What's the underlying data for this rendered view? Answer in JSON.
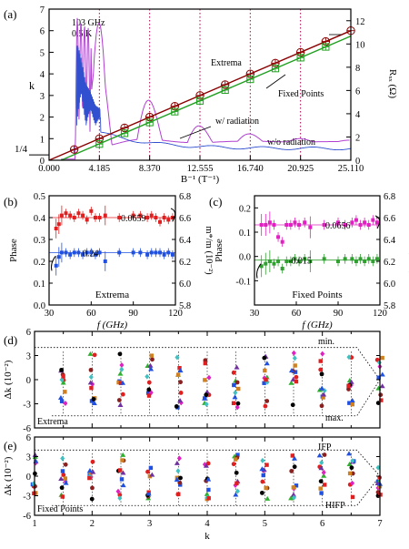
{
  "colors": {
    "axis": "#000000",
    "extrema_line": "#8b0000",
    "fixed_line": "#20a020",
    "rxx_with_radiation": "#b040d0",
    "rxx_without_radiation": "#3050d0",
    "dotted_marker": "#b00050",
    "phase_red": "#e02020",
    "phase_blue": "#2050e0",
    "phase_magenta": "#e020c0",
    "phase_green": "#30a030"
  },
  "chart_data": [
    {
      "id": "a",
      "panel_label": "(a)",
      "type": "line",
      "annotations": [
        "103 GHz",
        "0.5 K"
      ],
      "xlabel": "B⁻¹ (T⁻¹)",
      "ylabel": "k",
      "y2label": "Rₓₓ (Ω)",
      "xlim": [
        0,
        25.11
      ],
      "ylim": [
        0,
        7
      ],
      "y2lim": [
        0,
        13
      ],
      "x_ticks": [
        "0.000",
        "4.185",
        "8.370",
        "12.555",
        "16.740",
        "20.925",
        "25.110"
      ],
      "y_ticks": [
        "0",
        "1",
        "2",
        "3",
        "4",
        "5",
        "6",
        "7"
      ],
      "y2_ticks": [
        "0",
        "2",
        "4",
        "6",
        "8",
        "10",
        "12"
      ],
      "extra_y_label": "1/4",
      "labels": {
        "extrema": "Extrema",
        "fixed_points": "Fixed Points",
        "with_radiation": "w/ radiation",
        "without_radiation": "w/o radiation"
      },
      "extrema_x": [
        2.09,
        4.185,
        6.28,
        8.37,
        10.46,
        12.555,
        14.65,
        16.74,
        18.83,
        20.925,
        23.02,
        25.11
      ],
      "extrema_k": [
        0.5,
        1.0,
        1.5,
        2.0,
        2.5,
        3.0,
        3.5,
        4.0,
        4.5,
        5.0,
        5.5,
        6.0
      ],
      "fixed_x": [
        4.185,
        6.28,
        8.37,
        10.46,
        12.555,
        14.65,
        16.74,
        18.83,
        20.925,
        23.02
      ],
      "fixed_k": [
        0.75,
        1.25,
        1.75,
        2.25,
        2.75,
        3.25,
        3.75,
        4.25,
        4.75,
        5.25
      ],
      "dotted_x": [
        4.185,
        8.37,
        12.555,
        16.74,
        20.925
      ]
    },
    {
      "id": "b",
      "panel_label": "(b)",
      "type": "scatter",
      "title": "Extrema",
      "xlabel": "f (GHz)",
      "ylabel": "Phase",
      "y2label": "m*/m (10⁻²)",
      "xlim": [
        30,
        120
      ],
      "ylim": [
        0.0,
        0.5
      ],
      "y2lim": [
        5.8,
        6.8
      ],
      "x_ticks": [
        "30",
        "60",
        "90",
        "120"
      ],
      "y_ticks": [
        "0.0",
        "0.1",
        "0.2",
        "0.3",
        "0.4",
        "0.5"
      ],
      "y2_ticks": [
        "5.8",
        "6.0",
        "6.2",
        "6.4",
        "6.6",
        "6.8"
      ],
      "fit_labels": [
        "0.0659",
        "0.24"
      ],
      "series": [
        {
          "name": "",
          "color": "red",
          "mean": 0.4,
          "x": [
            35,
            37,
            39,
            42,
            45,
            48,
            51,
            54,
            57,
            60,
            63,
            66,
            70,
            80,
            90,
            95,
            100,
            103,
            106,
            109,
            112,
            115,
            118
          ],
          "values": [
            0.35,
            0.37,
            0.41,
            0.42,
            0.41,
            0.4,
            0.42,
            0.41,
            0.39,
            0.43,
            0.4,
            0.4,
            0.41,
            0.4,
            0.41,
            0.41,
            0.4,
            0.41,
            0.4,
            0.38,
            0.4,
            0.39,
            0.4
          ]
        },
        {
          "name": "",
          "color": "blue",
          "mean": 0.24,
          "x": [
            35,
            37,
            39,
            42,
            45,
            48,
            51,
            54,
            57,
            60,
            63,
            66,
            70,
            80,
            90,
            95,
            100,
            103,
            106,
            109,
            112,
            115,
            118
          ],
          "values": [
            0.18,
            0.22,
            0.24,
            0.24,
            0.23,
            0.24,
            0.24,
            0.23,
            0.24,
            0.24,
            0.23,
            0.24,
            0.2,
            0.24,
            0.24,
            0.24,
            0.23,
            0.24,
            0.24,
            0.24,
            0.23,
            0.24,
            0.23
          ]
        }
      ]
    },
    {
      "id": "c",
      "panel_label": "(c)",
      "type": "scatter",
      "title": "Fixed Points",
      "xlabel": "f (GHz)",
      "ylabel": "Phase",
      "y2label": "m*/m (10⁻²)",
      "xlim": [
        30,
        120
      ],
      "ylim": [
        -0.2,
        0.25
      ],
      "y2lim": [
        5.8,
        6.8
      ],
      "x_ticks": [
        "30",
        "60",
        "90",
        "120"
      ],
      "y_ticks": [
        "-0.1",
        "0.0",
        "0.1",
        "0.2"
      ],
      "y2_ticks": [
        "5.8",
        "6.0",
        "6.2",
        "6.4",
        "6.6",
        "6.8"
      ],
      "fit_labels": [
        "0.0656",
        "-0.015"
      ],
      "series": [
        {
          "name": "",
          "color": "magenta",
          "mean": 0.13,
          "x": [
            35,
            38,
            41,
            44,
            47,
            50,
            53,
            56,
            59,
            62,
            66,
            70,
            80,
            90,
            95,
            100,
            103,
            106,
            109,
            112,
            115,
            118
          ],
          "values": [
            0.13,
            0.13,
            0.14,
            0.13,
            0.08,
            0.06,
            0.13,
            0.13,
            0.14,
            0.13,
            0.14,
            0.12,
            0.13,
            0.14,
            0.13,
            0.14,
            0.15,
            0.13,
            0.14,
            0.13,
            0.15,
            0.14
          ]
        },
        {
          "name": "",
          "color": "green",
          "mean": -0.015,
          "x": [
            35,
            38,
            41,
            44,
            47,
            50,
            53,
            56,
            59,
            62,
            66,
            70,
            80,
            90,
            95,
            100,
            103,
            106,
            109,
            112,
            115,
            118
          ],
          "values": [
            -0.04,
            -0.03,
            -0.02,
            -0.03,
            -0.02,
            -0.05,
            -0.02,
            -0.02,
            -0.01,
            -0.02,
            -0.01,
            -0.02,
            -0.01,
            -0.02,
            -0.01,
            -0.01,
            -0.02,
            -0.01,
            -0.02,
            -0.01,
            -0.02,
            -0.01
          ]
        }
      ]
    },
    {
      "id": "d",
      "panel_label": "(d)",
      "type": "scatter",
      "xlabel": "",
      "ylabel": "Δk (10⁻²)",
      "xlim": [
        1,
        7
      ],
      "ylim": [
        -6,
        6
      ],
      "y_ticks": [
        "-6",
        "-3",
        "0",
        "3",
        "6"
      ],
      "labels": {
        "corner": "Extrema",
        "top": "min.",
        "bottom": "max."
      },
      "k_values": [
        1.5,
        2.0,
        2.5,
        3.0,
        3.5,
        4.0,
        4.5,
        5.0,
        5.5,
        6.0,
        6.5,
        7.0
      ]
    },
    {
      "id": "e",
      "panel_label": "(e)",
      "type": "scatter",
      "xlabel": "k",
      "ylabel": "Δk (10⁻²)",
      "xlim": [
        1,
        7
      ],
      "ylim": [
        -6,
        6
      ],
      "x_ticks": [
        "1",
        "2",
        "3",
        "4",
        "5",
        "6",
        "7"
      ],
      "y_ticks": [
        "-6",
        "-3",
        "0",
        "3",
        "6"
      ],
      "labels": {
        "corner": "Fixed Points",
        "top": "IFP",
        "bottom": "HIFP"
      },
      "k_values": [
        1.0,
        1.5,
        2.0,
        2.5,
        3.0,
        3.5,
        4.0,
        4.5,
        5.0,
        5.5,
        6.0,
        6.5,
        7.0
      ]
    }
  ]
}
